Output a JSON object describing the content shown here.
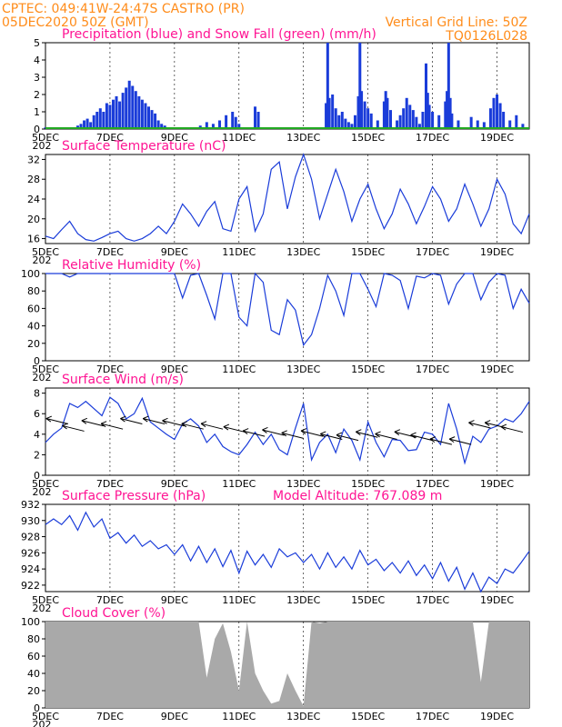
{
  "header": {
    "line1": "CPTEC:   049:41W-24:47S   CASTRO (PR)",
    "line2": "05DEC2020 50Z (GMT)",
    "grid_note": "Vertical Grid Line: 50Z",
    "code": "TQ0126L028",
    "cut_year": "202"
  },
  "x_axis": {
    "days": [
      "5DEC",
      "7DEC",
      "9DEC",
      "11DEC",
      "13DEC",
      "15DEC",
      "17DEC",
      "19DEC"
    ],
    "day_numbers": [
      5,
      7,
      9,
      11,
      13,
      15,
      17,
      19
    ],
    "start_day": 5,
    "end_day": 20
  },
  "colors": {
    "header": "#ff8c1a",
    "title": "#ff1493",
    "series": "#1a3cd9",
    "snow": "#22aa22",
    "cloud_fill": "#a9a9a9",
    "grid": "#000000"
  },
  "chart_data": [
    {
      "id": "precip",
      "type": "bar",
      "title": "Precipitation (blue) and Snow Fall (green) (mm/h)",
      "ylim": [
        0,
        5
      ],
      "yticks": [
        "0",
        "1",
        "2",
        "3",
        "4",
        "5"
      ],
      "series": [
        {
          "name": "blue",
          "values": [
            [
              5.0,
              0.1
            ],
            [
              5.5,
              0.1
            ],
            [
              6.0,
              0.2
            ],
            [
              6.1,
              0.3
            ],
            [
              6.2,
              0.5
            ],
            [
              6.3,
              0.6
            ],
            [
              6.4,
              0.4
            ],
            [
              6.5,
              0.8
            ],
            [
              6.6,
              1.0
            ],
            [
              6.7,
              1.2
            ],
            [
              6.8,
              1.0
            ],
            [
              6.9,
              1.5
            ],
            [
              7.0,
              1.4
            ],
            [
              7.1,
              1.7
            ],
            [
              7.2,
              1.9
            ],
            [
              7.3,
              1.6
            ],
            [
              7.4,
              2.1
            ],
            [
              7.5,
              2.4
            ],
            [
              7.6,
              2.8
            ],
            [
              7.7,
              2.5
            ],
            [
              7.8,
              2.2
            ],
            [
              7.9,
              1.9
            ],
            [
              8.0,
              1.7
            ],
            [
              8.1,
              1.5
            ],
            [
              8.2,
              1.3
            ],
            [
              8.3,
              1.1
            ],
            [
              8.4,
              0.9
            ],
            [
              8.5,
              0.5
            ],
            [
              8.6,
              0.3
            ],
            [
              8.7,
              0.2
            ],
            [
              9.0,
              0.1
            ],
            [
              9.8,
              0.2
            ],
            [
              10.0,
              0.4
            ],
            [
              10.2,
              0.3
            ],
            [
              10.4,
              0.5
            ],
            [
              10.6,
              0.8
            ],
            [
              10.8,
              1.0
            ],
            [
              10.9,
              0.7
            ],
            [
              11.0,
              0.3
            ],
            [
              11.5,
              1.3
            ],
            [
              11.6,
              1.0
            ],
            [
              13.7,
              1.5
            ],
            [
              13.75,
              5.0
            ],
            [
              13.8,
              1.8
            ],
            [
              13.9,
              2.0
            ],
            [
              14.0,
              1.2
            ],
            [
              14.1,
              0.8
            ],
            [
              14.2,
              1.0
            ],
            [
              14.3,
              0.6
            ],
            [
              14.4,
              0.4
            ],
            [
              14.5,
              0.3
            ],
            [
              14.6,
              0.8
            ],
            [
              14.7,
              1.9
            ],
            [
              14.75,
              5.0
            ],
            [
              14.8,
              2.2
            ],
            [
              14.9,
              1.6
            ],
            [
              15.0,
              1.2
            ],
            [
              15.1,
              0.9
            ],
            [
              15.3,
              0.5
            ],
            [
              15.5,
              1.6
            ],
            [
              15.55,
              2.2
            ],
            [
              15.6,
              1.8
            ],
            [
              15.7,
              1.1
            ],
            [
              15.9,
              0.5
            ],
            [
              16.0,
              0.8
            ],
            [
              16.1,
              1.2
            ],
            [
              16.2,
              1.8
            ],
            [
              16.3,
              1.4
            ],
            [
              16.4,
              1.1
            ],
            [
              16.5,
              0.7
            ],
            [
              16.6,
              0.3
            ],
            [
              16.7,
              1.0
            ],
            [
              16.8,
              3.8
            ],
            [
              16.85,
              2.1
            ],
            [
              16.9,
              1.4
            ],
            [
              17.0,
              1.0
            ],
            [
              17.2,
              0.8
            ],
            [
              17.4,
              1.6
            ],
            [
              17.45,
              2.2
            ],
            [
              17.5,
              5.0
            ],
            [
              17.55,
              1.8
            ],
            [
              17.6,
              0.9
            ],
            [
              17.8,
              0.5
            ],
            [
              18.2,
              0.7
            ],
            [
              18.4,
              0.5
            ],
            [
              18.6,
              0.4
            ],
            [
              18.8,
              1.2
            ],
            [
              18.9,
              1.8
            ],
            [
              19.0,
              2.0
            ],
            [
              19.1,
              1.5
            ],
            [
              19.2,
              1.0
            ],
            [
              19.4,
              0.5
            ],
            [
              19.6,
              0.8
            ],
            [
              19.8,
              0.3
            ]
          ]
        },
        {
          "name": "green",
          "values": [
            [
              5.0,
              0.05
            ],
            [
              20.0,
              0.05
            ]
          ]
        }
      ]
    },
    {
      "id": "temperature",
      "type": "line",
      "title": "Surface Temperature (nC)",
      "ylim": [
        15,
        33
      ],
      "yticks": [
        "16",
        "20",
        "24",
        "28",
        "32"
      ],
      "ytick_values": [
        16,
        20,
        24,
        28,
        32
      ],
      "x": [
        5.0,
        5.25,
        5.5,
        5.75,
        6.0,
        6.25,
        6.5,
        6.75,
        7.0,
        7.25,
        7.5,
        7.75,
        8.0,
        8.25,
        8.5,
        8.75,
        9.0,
        9.25,
        9.5,
        9.75,
        10.0,
        10.25,
        10.5,
        10.75,
        11.0,
        11.25,
        11.5,
        11.75,
        12.0,
        12.25,
        12.5,
        12.75,
        13.0,
        13.25,
        13.5,
        13.75,
        14.0,
        14.25,
        14.5,
        14.75,
        15.0,
        15.25,
        15.5,
        15.75,
        16.0,
        16.25,
        16.5,
        16.75,
        17.0,
        17.25,
        17.5,
        17.75,
        18.0,
        18.25,
        18.5,
        18.75,
        19.0,
        19.25,
        19.5,
        19.75,
        20.0
      ],
      "values": [
        16.5,
        16,
        17.8,
        19.5,
        17,
        15.8,
        15.5,
        16.2,
        17,
        17.5,
        16,
        15.5,
        16,
        17,
        18.5,
        17,
        19.5,
        23,
        21,
        18.5,
        21.5,
        23.5,
        18,
        17.5,
        24,
        26.5,
        17.5,
        21,
        30,
        31.5,
        22,
        28.5,
        33,
        28,
        20,
        25,
        30,
        25.5,
        19.5,
        24,
        27,
        22,
        18,
        21,
        26,
        23,
        19,
        22.5,
        26.5,
        24,
        19.5,
        22,
        27,
        23,
        18.5,
        22,
        28,
        25,
        19,
        17,
        21
      ]
    },
    {
      "id": "humidity",
      "type": "line",
      "title": "Relative Humidity (%)",
      "ylim": [
        0,
        100
      ],
      "yticks": [
        "0",
        "20",
        "40",
        "60",
        "80",
        "100"
      ],
      "ytick_values": [
        0,
        20,
        40,
        60,
        80,
        100
      ],
      "x": [
        5.0,
        5.25,
        5.5,
        5.75,
        6.0,
        6.25,
        6.5,
        6.75,
        7.0,
        7.25,
        7.5,
        7.75,
        8.0,
        8.25,
        8.5,
        8.75,
        9.0,
        9.25,
        9.5,
        9.75,
        10.0,
        10.25,
        10.5,
        10.75,
        11.0,
        11.25,
        11.5,
        11.75,
        12.0,
        12.25,
        12.5,
        12.75,
        13.0,
        13.25,
        13.5,
        13.75,
        14.0,
        14.25,
        14.5,
        14.75,
        15.0,
        15.25,
        15.5,
        15.75,
        16.0,
        16.25,
        16.5,
        16.75,
        17.0,
        17.25,
        17.5,
        17.75,
        18.0,
        18.25,
        18.5,
        18.75,
        19.0,
        19.25,
        19.5,
        19.75,
        20.0
      ],
      "values": [
        100,
        100,
        100,
        96,
        100,
        100,
        100,
        100,
        100,
        100,
        100,
        100,
        100,
        100,
        100,
        100,
        100,
        72,
        98,
        100,
        75,
        48,
        100,
        100,
        50,
        40,
        100,
        90,
        35,
        30,
        70,
        58,
        18,
        30,
        60,
        98,
        80,
        52,
        100,
        100,
        82,
        62,
        100,
        98,
        92,
        60,
        97,
        95,
        100,
        98,
        65,
        88,
        100,
        100,
        70,
        90,
        100,
        98,
        60,
        82,
        66
      ]
    },
    {
      "id": "wind",
      "type": "line",
      "title": "Surface Wind (m/s)",
      "ylim": [
        0,
        8.5
      ],
      "yticks": [
        "0",
        "2",
        "4",
        "6",
        "8"
      ],
      "ytick_values": [
        0,
        2,
        4,
        6,
        8
      ],
      "x": [
        5.0,
        5.25,
        5.5,
        5.75,
        6.0,
        6.25,
        6.5,
        6.75,
        7.0,
        7.25,
        7.5,
        7.75,
        8.0,
        8.25,
        8.5,
        8.75,
        9.0,
        9.25,
        9.5,
        9.75,
        10.0,
        10.25,
        10.5,
        10.75,
        11.0,
        11.25,
        11.5,
        11.75,
        12.0,
        12.25,
        12.5,
        12.75,
        13.0,
        13.25,
        13.5,
        13.75,
        14.0,
        14.25,
        14.5,
        14.75,
        15.0,
        15.25,
        15.5,
        15.75,
        16.0,
        16.25,
        16.5,
        16.75,
        17.0,
        17.25,
        17.5,
        17.75,
        18.0,
        18.25,
        18.5,
        18.75,
        19.0,
        19.25,
        19.5,
        19.75,
        20.0
      ],
      "values": [
        3.2,
        4.0,
        4.6,
        7.0,
        6.6,
        7.2,
        6.5,
        5.8,
        7.6,
        7.0,
        5.5,
        6.0,
        7.5,
        5.2,
        4.6,
        4.0,
        3.5,
        5.0,
        5.5,
        4.8,
        3.2,
        4.0,
        2.8,
        2.3,
        2.0,
        3.0,
        4.2,
        3.0,
        4.0,
        2.5,
        2.0,
        4.6,
        7.0,
        1.5,
        3.2,
        4.0,
        2.2,
        4.5,
        3.4,
        1.5,
        5.2,
        3.2,
        1.8,
        3.5,
        3.4,
        2.4,
        2.5,
        4.2,
        4.0,
        3.0,
        7.0,
        4.5,
        1.2,
        3.8,
        3.2,
        4.5,
        4.8,
        5.5,
        5.2,
        6.0,
        7.2
      ]
    },
    {
      "id": "pressure",
      "type": "line",
      "title": "Surface Pressure (hPa)",
      "subtitle": "Model Altitude: 767.089 m",
      "ylim": [
        921.2,
        932
      ],
      "yticks": [
        "922",
        "924",
        "926",
        "928",
        "930",
        "932"
      ],
      "ytick_values": [
        922,
        924,
        926,
        928,
        930,
        932
      ],
      "x": [
        5.0,
        5.25,
        5.5,
        5.75,
        6.0,
        6.25,
        6.5,
        6.75,
        7.0,
        7.25,
        7.5,
        7.75,
        8.0,
        8.25,
        8.5,
        8.75,
        9.0,
        9.25,
        9.5,
        9.75,
        10.0,
        10.25,
        10.5,
        10.75,
        11.0,
        11.25,
        11.5,
        11.75,
        12.0,
        12.25,
        12.5,
        12.75,
        13.0,
        13.25,
        13.5,
        13.75,
        14.0,
        14.25,
        14.5,
        14.75,
        15.0,
        15.25,
        15.5,
        15.75,
        16.0,
        16.25,
        16.5,
        16.75,
        17.0,
        17.25,
        17.5,
        17.75,
        18.0,
        18.25,
        18.5,
        18.75,
        19.0,
        19.25,
        19.5,
        19.75,
        20.0
      ],
      "values": [
        929.5,
        930.2,
        929.5,
        930.6,
        928.8,
        931.0,
        929.2,
        930.2,
        927.8,
        928.5,
        927.2,
        928.2,
        926.8,
        927.5,
        926.5,
        927.0,
        925.8,
        927.0,
        925.0,
        926.8,
        924.8,
        926.5,
        924.3,
        926.3,
        923.5,
        926.2,
        924.5,
        925.8,
        924.2,
        926.5,
        925.5,
        926.0,
        924.8,
        925.8,
        924.0,
        926.0,
        924.2,
        925.5,
        924.0,
        926.3,
        924.5,
        925.2,
        923.8,
        924.8,
        923.5,
        925.0,
        923.2,
        924.5,
        922.8,
        924.8,
        922.5,
        924.2,
        921.5,
        923.5,
        921.2,
        923.0,
        922.2,
        924.0,
        923.5,
        924.8,
        926.2
      ]
    },
    {
      "id": "cloud",
      "type": "area",
      "title": "Cloud Cover (%)",
      "ylim": [
        0,
        100
      ],
      "yticks": [
        "0",
        "20",
        "40",
        "60",
        "80",
        "100"
      ],
      "ytick_values": [
        0,
        20,
        40,
        60,
        80,
        100
      ],
      "x": [
        5.0,
        5.25,
        5.5,
        5.75,
        6.0,
        6.25,
        6.5,
        6.75,
        7.0,
        7.25,
        7.5,
        7.75,
        8.0,
        8.25,
        8.5,
        8.75,
        9.0,
        9.25,
        9.5,
        9.75,
        10.0,
        10.25,
        10.5,
        10.75,
        11.0,
        11.25,
        11.5,
        11.75,
        12.0,
        12.25,
        12.5,
        12.75,
        13.0,
        13.25,
        13.5,
        13.75,
        14.0,
        14.25,
        14.5,
        14.75,
        15.0,
        15.25,
        15.5,
        15.75,
        16.0,
        16.25,
        16.5,
        16.75,
        17.0,
        17.25,
        17.5,
        17.75,
        18.0,
        18.25,
        18.5,
        18.75,
        19.0,
        19.25,
        19.5,
        19.75,
        20.0
      ],
      "values": [
        100,
        100,
        100,
        100,
        100,
        100,
        100,
        100,
        100,
        100,
        100,
        100,
        100,
        100,
        100,
        100,
        100,
        100,
        100,
        100,
        35,
        80,
        98,
        65,
        20,
        100,
        40,
        20,
        5,
        8,
        40,
        20,
        2,
        100,
        98,
        100,
        100,
        100,
        100,
        100,
        100,
        100,
        100,
        100,
        100,
        100,
        100,
        100,
        100,
        100,
        100,
        100,
        100,
        100,
        30,
        100,
        100,
        100,
        100,
        100,
        100
      ]
    }
  ]
}
